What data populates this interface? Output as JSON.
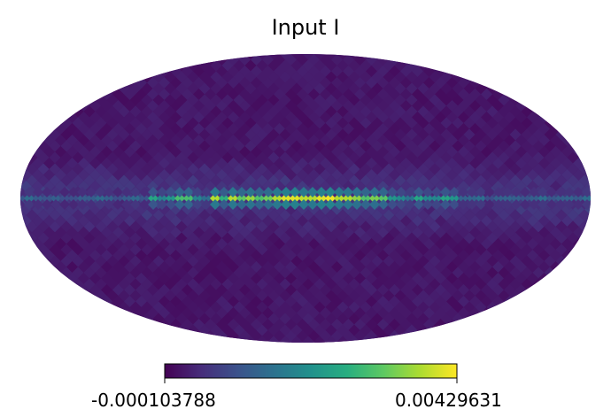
{
  "chart_data": {
    "type": "heatmap",
    "projection": "mollweide",
    "title": "Input I",
    "colormap": "viridis",
    "colorbar": {
      "min_label": "-0.000103788",
      "max_label": "0.00429631",
      "min": -0.000103788,
      "max": 0.00429631,
      "orientation": "horizontal",
      "placement": "bottom"
    },
    "feature": "bright emission band along the map equator (galactic plane), peaking near the centre"
  },
  "colors": {
    "viridis_low": "#440154",
    "viridis_mid": "#21918c",
    "viridis_high": "#fde725",
    "background_map": "#46186a"
  }
}
